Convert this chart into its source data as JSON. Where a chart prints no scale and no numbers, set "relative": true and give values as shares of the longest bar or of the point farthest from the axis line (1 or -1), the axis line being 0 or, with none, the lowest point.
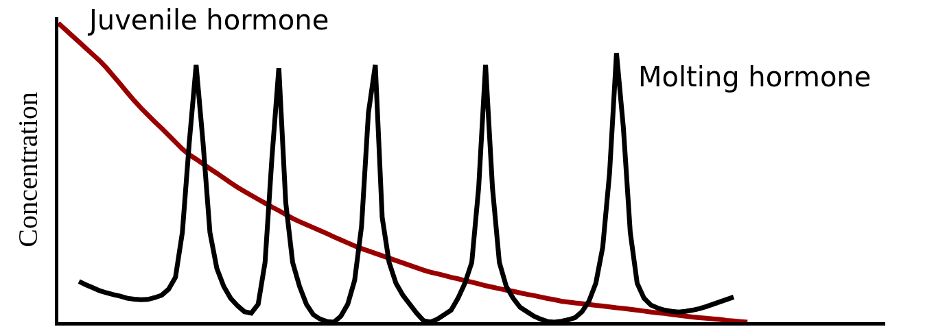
{
  "chart_data": {
    "type": "line",
    "relative": true,
    "ylabel": "Concentration",
    "legend": false,
    "categories": [
      null,
      null,
      null,
      null,
      null,
      null,
      null,
      null,
      null,
      null,
      null,
      null,
      null,
      null,
      null,
      null,
      null,
      null,
      null,
      null,
      null,
      null,
      null,
      null,
      null,
      null,
      null,
      null,
      null,
      null,
      null,
      null,
      null,
      null,
      null,
      null,
      null,
      null,
      null,
      null,
      null,
      null,
      null,
      null,
      null,
      null,
      null,
      null,
      null,
      null,
      null,
      null,
      null,
      null,
      null,
      null,
      null,
      null,
      null,
      null,
      null,
      null,
      null,
      null,
      null,
      null,
      null,
      null,
      null,
      null,
      null,
      null,
      null,
      null,
      null,
      null,
      null,
      null,
      null,
      null,
      null,
      null,
      null,
      null,
      null,
      null,
      null,
      null,
      null,
      null,
      null,
      null,
      null,
      null,
      null,
      null,
      null,
      null,
      null,
      null,
      null,
      null,
      null,
      null,
      null,
      null,
      null,
      null,
      null,
      null,
      null,
      null,
      null,
      null,
      null,
      null,
      null,
      null,
      null,
      null,
      null
    ],
    "series": [
      {
        "name": "Juvenile hormone",
        "color": "#990000",
        "values": [
          1,
          0.979,
          0.958,
          0.937,
          0.916,
          0.895,
          0.874,
          0.85,
          0.823,
          0.796,
          0.768,
          0.741,
          0.716,
          0.693,
          0.67,
          0.648,
          0.625,
          0.602,
          0.579,
          0.56,
          0.545,
          0.529,
          0.513,
          0.498,
          0.482,
          0.466,
          0.451,
          0.437,
          0.424,
          0.411,
          0.398,
          0.385,
          0.373,
          0.36,
          0.347,
          0.336,
          0.326,
          0.316,
          0.306,
          0.296,
          0.285,
          0.275,
          0.265,
          0.255,
          0.246,
          0.238,
          0.23,
          0.222,
          0.214,
          0.206,
          0.198,
          0.19,
          0.182,
          0.174,
          0.167,
          0.162,
          0.156,
          0.15,
          0.145,
          0.139,
          0.134,
          0.128,
          0.122,
          0.117,
          0.112,
          0.107,
          0.103,
          0.098,
          0.093,
          0.089,
          0.084,
          0.079,
          0.075,
          0.07,
          0.067,
          0.064,
          0.062,
          0.059,
          0.056,
          0.054,
          0.051,
          0.048,
          0.046,
          0.043,
          0.04,
          0.037,
          0.034,
          0.031,
          0.029,
          0.026,
          0.023,
          0.02,
          0.017,
          0.015,
          0.013,
          0.011,
          0.009,
          0.006,
          0.004,
          0.002,
          0,
          null,
          null,
          null,
          null,
          null,
          null,
          null,
          null,
          null,
          null,
          null,
          null,
          null,
          null,
          null,
          null,
          null,
          null,
          null,
          null
        ]
      },
      {
        "name": "Molting hormone",
        "color": "#000000",
        "values": [
          null,
          null,
          null,
          0.136,
          0.125,
          0.115,
          0.105,
          0.098,
          0.092,
          0.087,
          0.08,
          0.077,
          0.075,
          0.076,
          0.082,
          0.09,
          0.11,
          0.15,
          0.3,
          0.6,
          0.86,
          0.6,
          0.3,
          0.18,
          0.12,
          0.08,
          0.055,
          0.035,
          0.03,
          0.06,
          0.2,
          0.55,
          0.85,
          0.4,
          0.2,
          0.12,
          0.06,
          0.025,
          0.01,
          0.002,
          0,
          0.02,
          0.06,
          0.14,
          0.32,
          0.7,
          0.86,
          0.35,
          0.2,
          0.13,
          0.09,
          0.06,
          0.03,
          0.005,
          0,
          0.01,
          0.025,
          0.04,
          0.08,
          0.13,
          0.2,
          0.45,
          0.86,
          0.45,
          0.2,
          0.12,
          0.08,
          0.05,
          0.035,
          0.02,
          0.01,
          0.002,
          0,
          0.003,
          0.008,
          0.015,
          0.035,
          0.07,
          0.13,
          0.25,
          0.5,
          0.9,
          0.65,
          0.3,
          0.13,
          0.08,
          0.057,
          0.047,
          0.04,
          0.036,
          0.034,
          0.036,
          0.04,
          0.045,
          0.052,
          0.06,
          0.068,
          0.076,
          0.084,
          null,
          null,
          null,
          null,
          null,
          null,
          null,
          null,
          null,
          null,
          null,
          null,
          null,
          null,
          null,
          null,
          null,
          null,
          null,
          null,
          null,
          null
        ]
      }
    ]
  }
}
